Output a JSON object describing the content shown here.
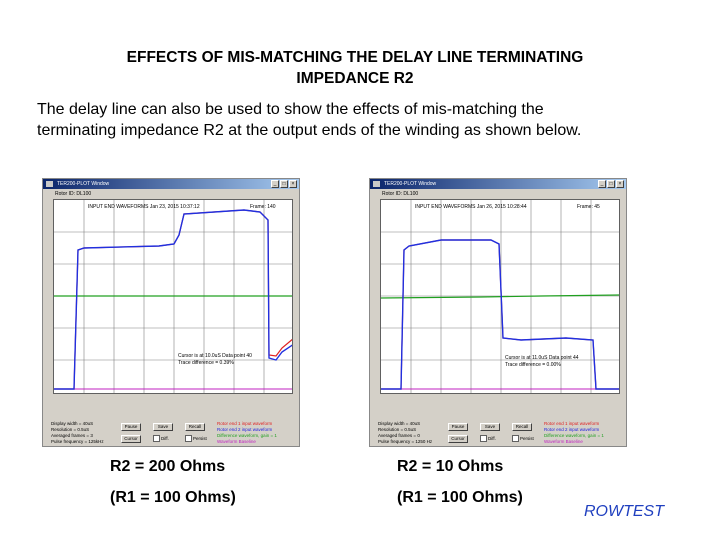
{
  "slide": {
    "title_line1": "EFFECTS OF MIS-MATCHING THE DELAY LINE TERMINATING",
    "title_line2": "IMPEDANCE R2",
    "intro_line1": "The delay line can also be used to show the effects of mis-matching the",
    "intro_line2": "terminating impedance R2 at the output ends of the winding as shown below.",
    "brand": "ROWTEST"
  },
  "left_window": {
    "title": "TER200-PLOT Window",
    "rotor_id": "Rotor ID: DL100",
    "plot_label": "INPUT END WAVEFORMS  Jan 23, 2015  10:37:12",
    "frame": "Frame: 140",
    "cursor_line1": "Cursor is at 10.0uS   Data point 40",
    "cursor_line2": "Trace difference =   0.39%",
    "ctrl_lines": [
      "Display width = 40uS",
      "Resolution = 0.5uS",
      "Averaged frames = 3",
      "Pulse frequency = 125kHz"
    ],
    "buttons": [
      "Pause",
      "Save",
      "Recall",
      "Cursor"
    ],
    "checks": [
      "Diff.",
      "Persist"
    ],
    "legend": [
      {
        "text": "Rotor end 1 input waveform",
        "color": "#e02020"
      },
      {
        "text": "Rotor end 2 input waveform",
        "color": "#2020e0"
      },
      {
        "text": "Difference waveform, gain = 1",
        "color": "#20a020"
      },
      {
        "text": "Waveform Baseline",
        "color": "#c020c0"
      }
    ],
    "caption1": "R2 = 200 Ohms",
    "caption2": "(R1 = 100 Ohms)"
  },
  "right_window": {
    "title": "TER200-PLOT Window",
    "rotor_id": "Rotor ID: DL100",
    "plot_label": "INPUT END WAVEFORMS  Jan 26, 2015  10:28:44",
    "frame": "Frame: 45",
    "cursor_line1": "Cursor is at 11.0uS   Data point 44",
    "cursor_line2": "Trace difference =   0.00%",
    "ctrl_lines": [
      "Display width = 40uS",
      "Resolution = 0.5uS",
      "Averaged frames = 0",
      "Pulse frequency = 1250 Hz"
    ],
    "buttons": [
      "Pause",
      "Save",
      "Recall",
      "Cursor"
    ],
    "checks": [
      "Diff.",
      "Persist"
    ],
    "legend": [
      {
        "text": "Rotor end 1 input waveform",
        "color": "#e02020"
      },
      {
        "text": "Rotor end 2 input waveform",
        "color": "#2020e0"
      },
      {
        "text": "Difference waveform, gain = 1",
        "color": "#20a020"
      },
      {
        "text": "Waveform Baseline",
        "color": "#c020c0"
      }
    ],
    "caption1": "R2 = 10 Ohms",
    "caption2": "(R1 = 100 Ohms)"
  },
  "colors": {
    "wave1": "#e02020",
    "wave2": "#2030e0",
    "diff": "#20a020",
    "baseline": "#c020c0",
    "grid": "#808080",
    "brand": "#1f3fbf"
  }
}
